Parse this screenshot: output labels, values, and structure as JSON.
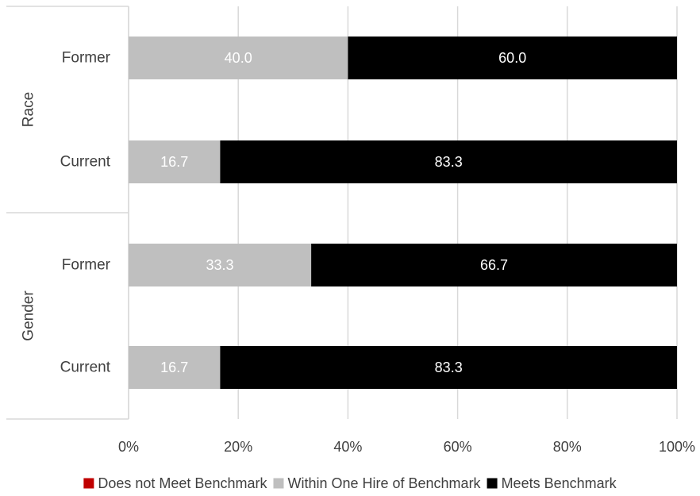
{
  "chart_data": {
    "type": "bar",
    "orientation": "horizontal",
    "stacked": "percent",
    "groups": [
      {
        "name": "Race",
        "categories": [
          "Former",
          "Current"
        ]
      },
      {
        "name": "Gender",
        "categories": [
          "Former",
          "Current"
        ]
      }
    ],
    "categories": [
      "Race Former",
      "Race Current",
      "Gender Former",
      "Gender Current"
    ],
    "category_labels": [
      "Former",
      "Current",
      "Former",
      "Current"
    ],
    "series": [
      {
        "name": "Does not Meet Benchmark",
        "color": "#c00000",
        "values": [
          0,
          0,
          0,
          0
        ]
      },
      {
        "name": "Within One Hire of Benchmark",
        "color": "#bfbfbf",
        "values": [
          40.0,
          16.7,
          33.3,
          16.7
        ]
      },
      {
        "name": "Meets Benchmark",
        "color": "#000000",
        "values": [
          60.0,
          83.3,
          66.7,
          83.3
        ]
      }
    ],
    "data_labels": [
      [
        "",
        "",
        "",
        ""
      ],
      [
        "40.0",
        "16.7",
        "33.3",
        "16.7"
      ],
      [
        "60.0",
        "83.3",
        "66.7",
        "83.3"
      ]
    ],
    "xlim": [
      0,
      100
    ],
    "x_ticks": [
      "0%",
      "20%",
      "40%",
      "60%",
      "80%",
      "100%"
    ],
    "grid": "vertical",
    "legend": "bottom",
    "title": "",
    "xlabel": "",
    "ylabel": ""
  }
}
